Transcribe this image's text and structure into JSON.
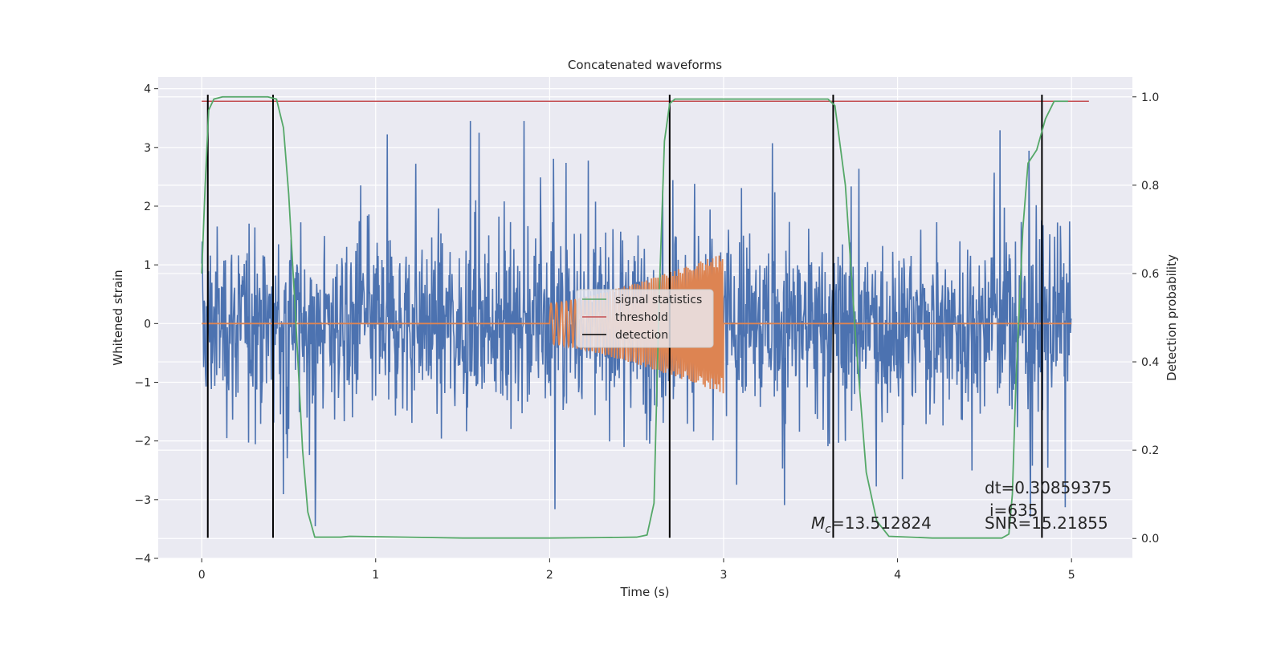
{
  "colors": {
    "plot_bg": "#eaeaf2",
    "grid": "#ffffff",
    "strain": "#4c72b0",
    "template": "#dd8452",
    "signal_statistics": "#55a868",
    "threshold": "#c44e52",
    "detection": "#000000",
    "text": "#262626"
  },
  "chart_data": {
    "type": "line",
    "title": "Concatenated waveforms",
    "xlabel": "Time (s)",
    "ylabel": "Whitened strain",
    "ylabel_right": "Detection probability",
    "xlim": [
      -0.25,
      5.35
    ],
    "ylim": [
      -4.0,
      4.2
    ],
    "ylim_right": [
      -0.045,
      1.045
    ],
    "grid": true,
    "legend_placement": "center",
    "x_ticks": [
      0,
      1,
      2,
      3,
      4,
      5
    ],
    "y_ticks": [
      -4,
      -3,
      -2,
      -1,
      0,
      1,
      2,
      3,
      4
    ],
    "y_ticks_right": [
      0.0,
      0.2,
      0.4,
      0.6,
      0.8,
      1.0
    ],
    "tick_labels": {
      "x": [
        "0",
        "1",
        "2",
        "3",
        "4",
        "5"
      ],
      "y": [
        "−4",
        "−3",
        "−2",
        "−1",
        "0",
        "1",
        "2",
        "3",
        "4"
      ],
      "y_right": [
        "0.0",
        "0.2",
        "0.4",
        "0.6",
        "0.8",
        "1.0"
      ]
    },
    "series": [
      {
        "name": "signal statistics",
        "axis": "right",
        "x": [
          0.0,
          0.02,
          0.04,
          0.07,
          0.12,
          0.2,
          0.38,
          0.43,
          0.47,
          0.5,
          0.54,
          0.58,
          0.61,
          0.65,
          0.8,
          0.85,
          1.5,
          2.0,
          2.3,
          2.5,
          2.56,
          2.6,
          2.63,
          2.66,
          2.69,
          2.72,
          2.8,
          3.0,
          3.5,
          3.6,
          3.64,
          3.7,
          3.76,
          3.82,
          3.88,
          3.95,
          4.2,
          4.6,
          4.64,
          4.66,
          4.68,
          4.72,
          4.75,
          4.8,
          4.85,
          4.9,
          4.98
        ],
        "y": [
          0.6,
          0.8,
          0.97,
          0.995,
          1.0,
          1.0,
          1.0,
          0.995,
          0.93,
          0.78,
          0.5,
          0.2,
          0.06,
          0.003,
          0.003,
          0.005,
          0.001,
          0.001,
          0.002,
          0.003,
          0.008,
          0.08,
          0.55,
          0.9,
          0.985,
          0.995,
          0.995,
          0.995,
          0.995,
          0.995,
          0.98,
          0.8,
          0.45,
          0.15,
          0.04,
          0.005,
          0.001,
          0.001,
          0.01,
          0.1,
          0.35,
          0.7,
          0.85,
          0.88,
          0.95,
          0.99,
          0.99
        ]
      },
      {
        "name": "threshold",
        "axis": "right",
        "x": [
          0.0,
          5.1
        ],
        "y": [
          0.99,
          0.99
        ]
      },
      {
        "name": "detection",
        "axis": "left",
        "type": "vlines",
        "x": [
          0.035,
          0.41,
          2.69,
          3.63,
          4.83
        ],
        "y_range": [
          -3.65,
          3.9
        ]
      }
    ],
    "unlabeled_series": [
      {
        "description_color": "strain",
        "kind": "noise",
        "x_range": [
          0.0,
          5.0
        ],
        "typical_amplitude": 1.4,
        "peak_values": [
          3.4,
          -3.55,
          3.3,
          -3.65,
          3.35,
          -3.0
        ]
      },
      {
        "description_color": "template",
        "kind": "chirp",
        "x_range": [
          0.0,
          5.0
        ],
        "active_range": [
          2.0,
          3.0
        ],
        "amplitude_start": 0.35,
        "amplitude_end": 1.2
      }
    ],
    "annotations": [
      {
        "id": "mc",
        "text_prefix": "M",
        "text_sub": "c",
        "text_value": "=13.512824"
      },
      {
        "id": "dt",
        "text": "dt=0.30859375"
      },
      {
        "id": "i",
        "text": "i=635"
      },
      {
        "id": "snr",
        "text": "SNR=15.21855"
      }
    ]
  }
}
